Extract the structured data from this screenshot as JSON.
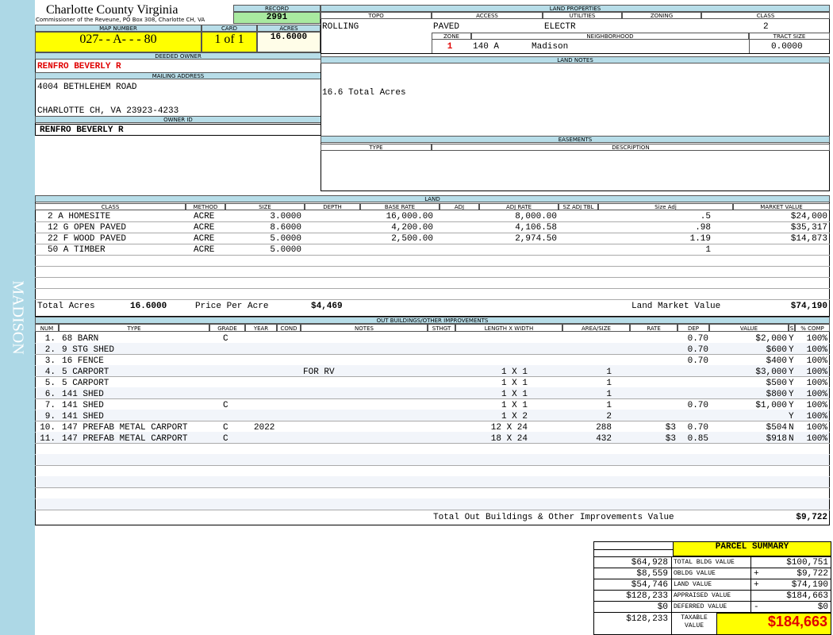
{
  "sidebar": "MADISON",
  "header": {
    "county": "Charlotte County Virginia",
    "office": "Commissioner of the Reveune, PO Box 308, Charlotte CH, VA"
  },
  "record": {
    "label": "RECORD",
    "value": "2991"
  },
  "map_number": {
    "label": "MAP NUMBER",
    "value": "027- - A- - - 80"
  },
  "card": {
    "label": "CARD",
    "value": "1 of 1"
  },
  "acres": {
    "label": "ACRES",
    "value": "16.6000"
  },
  "deeded_owner": {
    "label": "DEEDED OWNER",
    "value": "RENFRO BEVERLY R"
  },
  "mailing_address": {
    "label": "MAILING ADDRESS",
    "lines": [
      "4004 BETHLEHEM ROAD",
      "CHARLOTTE CH, VA 23923-4233"
    ]
  },
  "owner_id": {
    "label": "OWNER ID",
    "value": "RENFRO BEVERLY R"
  },
  "land_properties": {
    "label": "LAND PROPERTIES",
    "fields": [
      {
        "label": "TOPO",
        "value": "ROLLING"
      },
      {
        "label": "ACCESS",
        "value": "PAVED"
      },
      {
        "label": "UTILITIES",
        "value": "ELECTR"
      },
      {
        "label": "ZONING"
      },
      {
        "label": "CLASS",
        "value": "2"
      }
    ],
    "zone": {
      "label": "ZONE",
      "value": "1"
    },
    "neighborhood": {
      "label": "NEIGHBORHOOD",
      "code": "140 A",
      "name": "Madison"
    },
    "tract_size": {
      "label": "TRACT SIZE",
      "value": "0.0000"
    }
  },
  "land_notes": {
    "label": "LAND NOTES",
    "text": "16.6 Total Acres"
  },
  "easements": {
    "label": "EASEMENTS",
    "headers": [
      "TYPE",
      "DESCRIPTION"
    ]
  },
  "land": {
    "label": "LAND",
    "headers": [
      "CLASS",
      "METHOD",
      "SIZE",
      "DEPTH",
      "BASE RATE",
      "ADJ",
      "ADJ RATE",
      "SZ ADJ TBL",
      "Size Adj",
      "MARKET VALUE"
    ],
    "rows": [
      {
        "class": "2 A HOMESITE",
        "method": "ACRE",
        "size": "3.0000",
        "base_rate": "16,000.00",
        "adj_rate": "8,000.00",
        "size_adj": ".5",
        "market_value": "$24,000"
      },
      {
        "class": "12 G OPEN PAVED",
        "method": "ACRE",
        "size": "8.6000",
        "base_rate": "4,200.00",
        "adj_rate": "4,106.58",
        "size_adj": ".98",
        "market_value": "$35,317"
      },
      {
        "class": "22 F WOOD PAVED",
        "method": "ACRE",
        "size": "5.0000",
        "base_rate": "2,500.00",
        "adj_rate": "2,974.50",
        "size_adj": "1.19",
        "market_value": "$14,873"
      },
      {
        "class": "50 A TIMBER",
        "method": "ACRE",
        "size": "5.0000",
        "size_adj": "1"
      }
    ],
    "totals": {
      "total_acres_label": "Total Acres",
      "total_acres": "16.6000",
      "price_label": "Price Per Acre",
      "price": "$4,469",
      "market_label": "Land Market Value",
      "market": "$74,190"
    }
  },
  "outbuildings": {
    "label": "OUT BUILDINGS/OTHER IMPROVEMENTS",
    "headers": [
      "NUM",
      "TYPE",
      "GRADE",
      "YEAR",
      "COND",
      "NOTES",
      "STHGT",
      "LENGTH X WIDTH",
      "AREA/SIZE",
      "RATE",
      "DEP",
      "VALUE",
      "S",
      "% COMP"
    ],
    "rows": [
      {
        "num": "1.",
        "type": "68 BARN",
        "grade": "C",
        "dep": "0.70",
        "value": "$2,000",
        "s": "Y",
        "comp": "100%"
      },
      {
        "num": "2.",
        "type": "9 STG SHED",
        "dep": "0.70",
        "value": "$600",
        "s": "Y",
        "comp": "100%"
      },
      {
        "num": "3.",
        "type": "16 FENCE",
        "dep": "0.70",
        "value": "$400",
        "s": "Y",
        "comp": "100%"
      },
      {
        "num": "4.",
        "type": "5 CARPORT",
        "notes": "FOR RV",
        "length_width": "1 X 1",
        "area_size": "1",
        "value": "$3,000",
        "s": "Y",
        "comp": "100%"
      },
      {
        "num": "5.",
        "type": "5 CARPORT",
        "length_width": "1 X 1",
        "area_size": "1",
        "value": "$500",
        "s": "Y",
        "comp": "100%"
      },
      {
        "num": "6.",
        "type": "141 SHED",
        "length_width": "1 X 1",
        "area_size": "1",
        "value": "$800",
        "s": "Y",
        "comp": "100%"
      },
      {
        "num": "7.",
        "type": "141 SHED",
        "grade": "C",
        "length_width": "1 X 1",
        "area_size": "1",
        "dep": "0.70",
        "value": "$1,000",
        "s": "Y",
        "comp": "100%"
      },
      {
        "num": "9.",
        "type": "141 SHED",
        "length_width": "1 X 2",
        "area_size": "2",
        "s": "Y",
        "comp": "100%"
      },
      {
        "num": "10.",
        "type": "147 PREFAB METAL CARPORT",
        "grade": "C",
        "year": "2022",
        "length_width": "12 X 24",
        "area_size": "288",
        "rate": "$3",
        "dep": "0.70",
        "value": "$504",
        "s": "N",
        "comp": "100%"
      },
      {
        "num": "11.",
        "type": "147 PREFAB METAL CARPORT",
        "grade": "C",
        "length_width": "18 X 24",
        "area_size": "432",
        "rate": "$3",
        "dep": "0.85",
        "value": "$918",
        "s": "N",
        "comp": "100%"
      }
    ],
    "total": {
      "label": "Total Out Buildings & Other Improvements Value",
      "value": "$9,722"
    }
  },
  "parcel_summary": {
    "title": "PARCEL SUMMARY",
    "rows": [
      {
        "left": "$64,928",
        "label": "TOTAL BLDG VALUE",
        "value": "$100,751"
      },
      {
        "left": "$8,559",
        "label": "OBLDG VALUE",
        "sign": "+",
        "value": "$9,722"
      },
      {
        "left": "$54,746",
        "label": "LAND VALUE",
        "sign": "+",
        "value": "$74,190"
      },
      {
        "left": "$128,233",
        "label": "APPRAISED VALUE",
        "value": "$184,663"
      },
      {
        "left": "$0",
        "label": "DEFERRED VALUE",
        "sign": "-",
        "value": "$0"
      }
    ],
    "taxable": {
      "left": "$128,233",
      "label": "TAXABLE VALUE",
      "value": "$184,663"
    }
  }
}
